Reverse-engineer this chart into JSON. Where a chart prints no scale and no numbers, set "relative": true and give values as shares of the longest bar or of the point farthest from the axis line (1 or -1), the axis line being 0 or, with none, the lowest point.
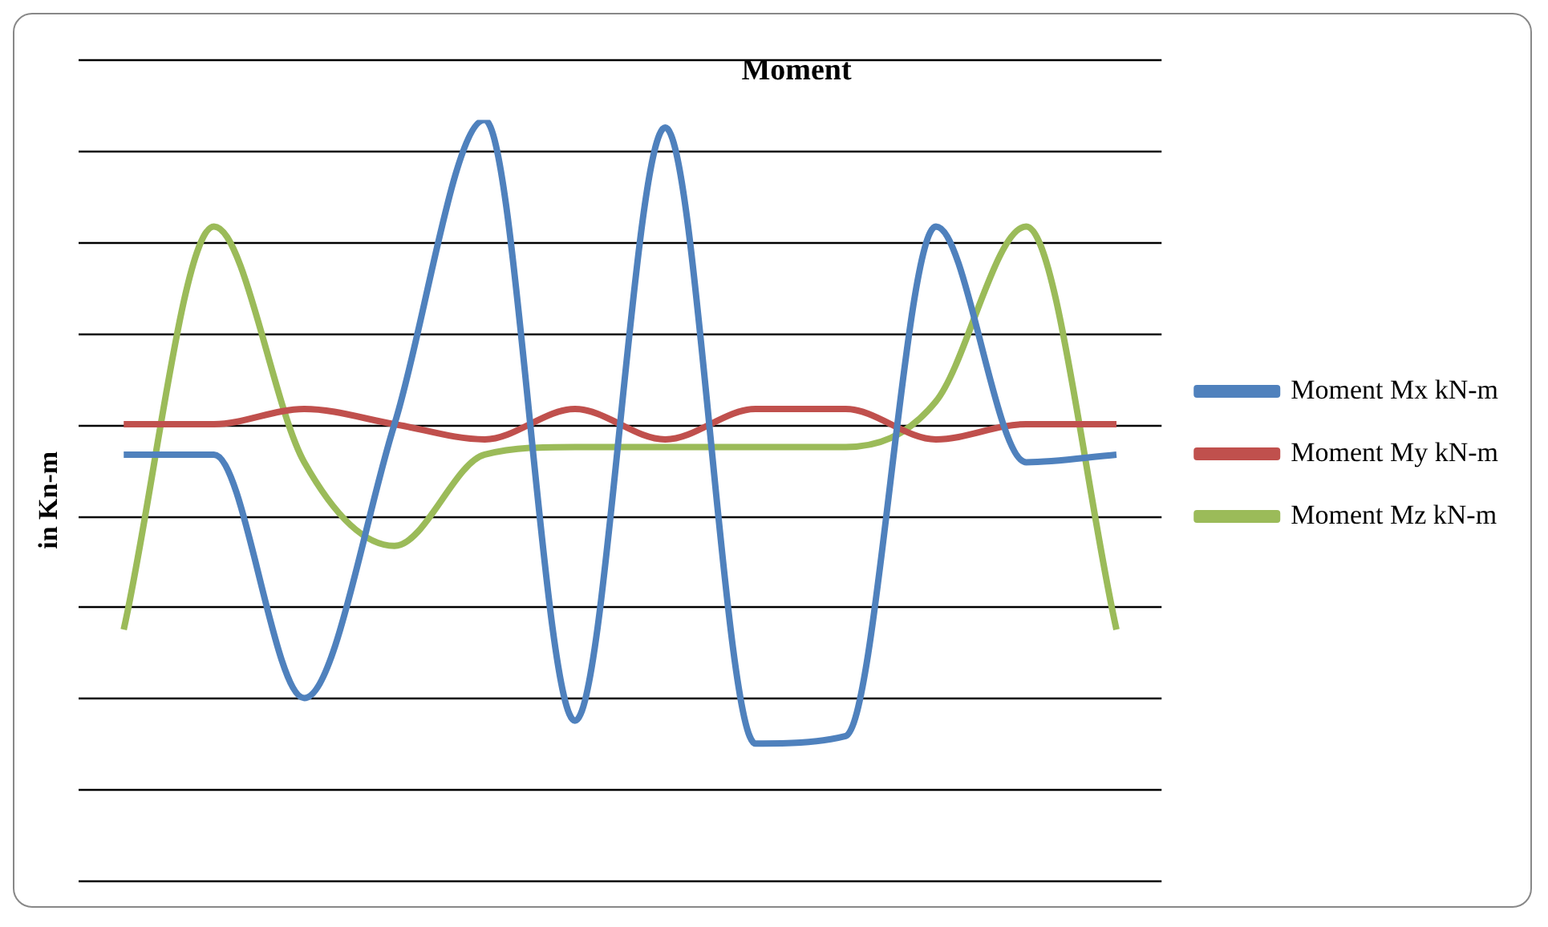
{
  "chart_data": {
    "type": "line",
    "title": "Moment",
    "ylabel": "in Kn-m",
    "relative": true,
    "grid": true,
    "legend": "right",
    "marker": "none",
    "line_style": "solid",
    "categories": [
      null,
      null,
      null,
      null,
      null,
      null,
      null,
      null,
      null,
      null,
      null,
      null
    ],
    "series": [
      {
        "name": "Moment Mx kN-m",
        "color": "#4f81bd",
        "values": [
          0.56,
          0.56,
          0.24,
          0.6,
          1,
          0.21,
          0.99,
          0.18,
          0.19,
          0.86,
          0.55,
          0.56
        ]
      },
      {
        "name": "Moment My kN-m",
        "color": "#c0504d",
        "values": [
          0.6,
          0.6,
          0.62,
          0.6,
          0.58,
          0.62,
          0.58,
          0.62,
          0.62,
          0.58,
          0.6,
          0.6
        ]
      },
      {
        "name": "Moment Mz kN-m",
        "color": "#9bbb59",
        "values": [
          0.33,
          0.86,
          0.55,
          0.44,
          0.56,
          0.57,
          0.57,
          0.57,
          0.57,
          0.63,
          0.86,
          0.33
        ]
      }
    ]
  }
}
